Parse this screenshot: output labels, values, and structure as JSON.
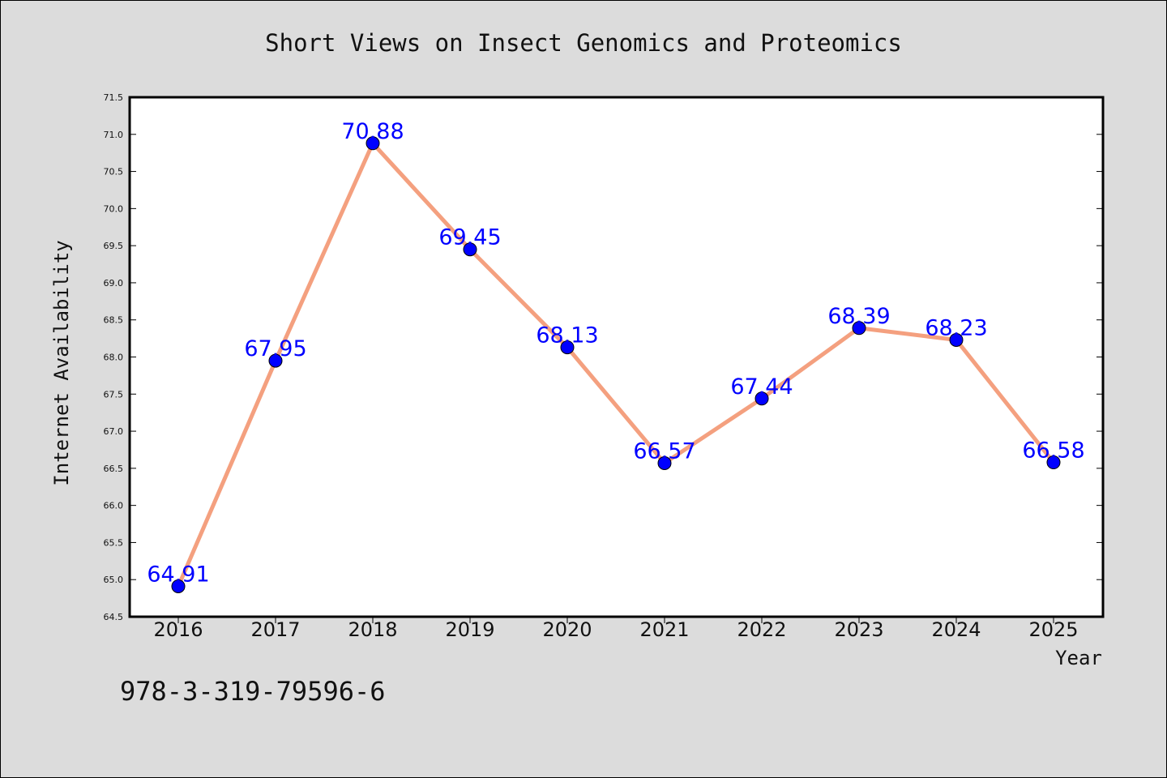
{
  "chart_data": {
    "type": "line",
    "title": "Short Views on Insect Genomics and Proteomics",
    "xlabel": "Year",
    "ylabel": "Internet Availability",
    "categories": [
      "2016",
      "2017",
      "2018",
      "2019",
      "2020",
      "2021",
      "2022",
      "2023",
      "2024",
      "2025"
    ],
    "values": [
      64.91,
      67.95,
      70.88,
      69.45,
      68.13,
      66.57,
      67.44,
      68.39,
      68.23,
      66.58
    ],
    "data_labels": [
      "64.91",
      "67.95",
      "70.88",
      "69.45",
      "68.13",
      "66.57",
      "67.44",
      "68.39",
      "68.23",
      "66.58"
    ],
    "ylim": [
      64.5,
      71.5
    ],
    "yticks": [
      "64.5",
      "65.0",
      "65.5",
      "66.0",
      "66.5",
      "67.0",
      "67.5",
      "68.0",
      "68.5",
      "69.0",
      "69.5",
      "70.0",
      "70.5",
      "71.0",
      "71.5"
    ],
    "grid": false,
    "line_color": "#f4a07f",
    "marker_color": "#0000ff",
    "label_color": "#0000ff"
  },
  "footer": {
    "text": "978-3-319-79596-6"
  }
}
